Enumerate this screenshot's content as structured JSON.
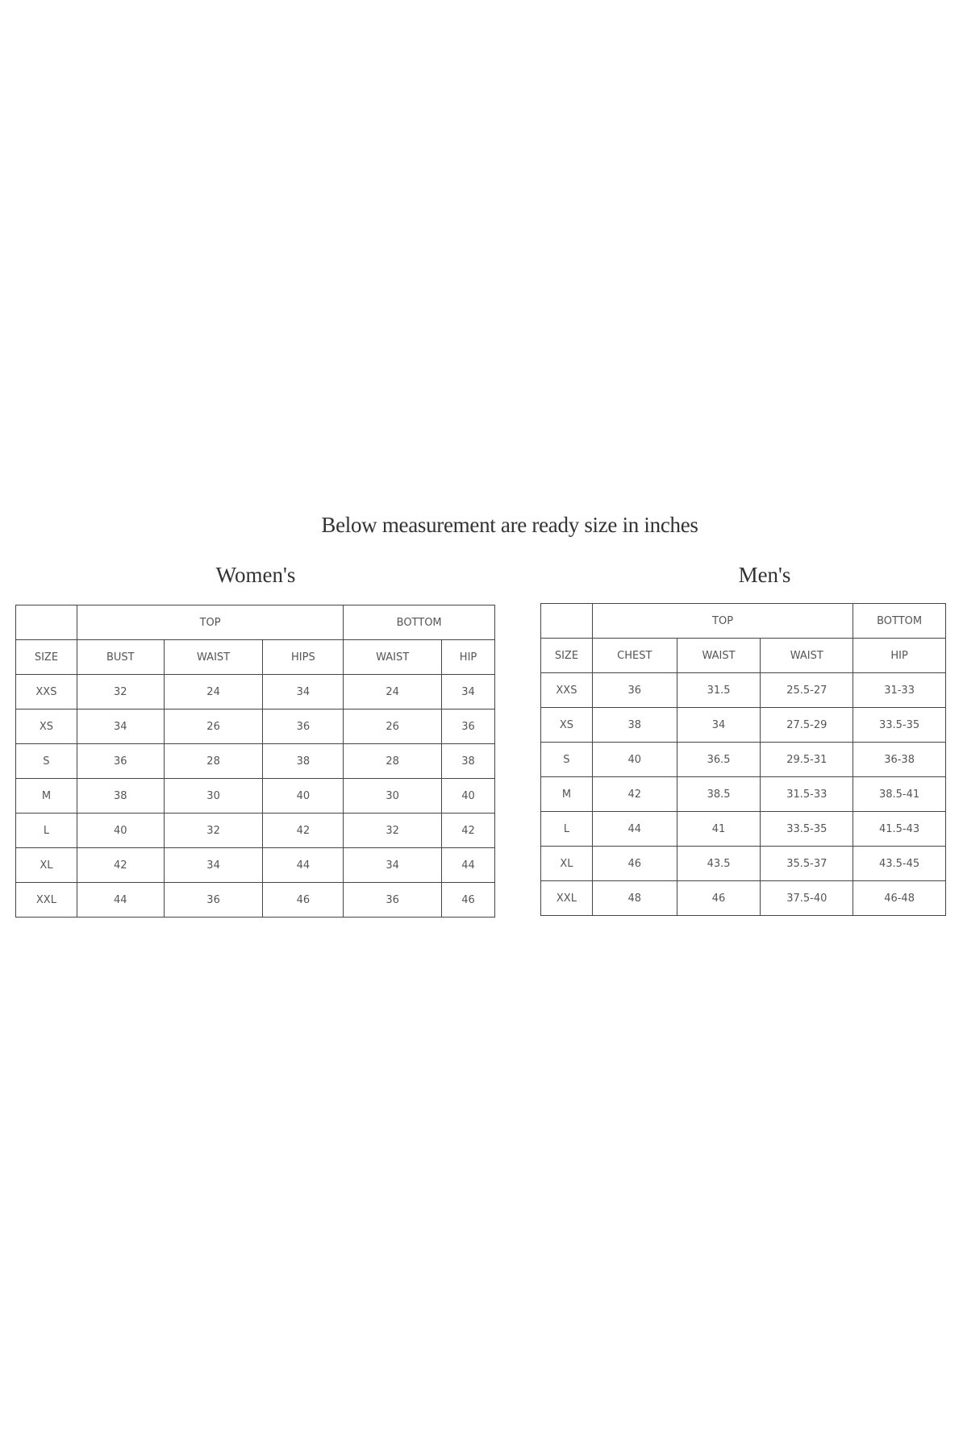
{
  "title": "Below measurement are ready size in inches",
  "women": {
    "heading": "Women's",
    "groups": [
      "TOP",
      "BOTTOM"
    ],
    "columns": [
      "SIZE",
      "BUST",
      "WAIST",
      "HIPS",
      "WAIST",
      "HIP"
    ],
    "rows": [
      [
        "XXS",
        "32",
        "24",
        "34",
        "24",
        "34"
      ],
      [
        "XS",
        "34",
        "26",
        "36",
        "26",
        "36"
      ],
      [
        "S",
        "36",
        "28",
        "38",
        "28",
        "38"
      ],
      [
        "M",
        "38",
        "30",
        "40",
        "30",
        "40"
      ],
      [
        "L",
        "40",
        "32",
        "42",
        "32",
        "42"
      ],
      [
        "XL",
        "42",
        "34",
        "44",
        "34",
        "44"
      ],
      [
        "XXL",
        "44",
        "36",
        "46",
        "36",
        "46"
      ]
    ]
  },
  "men": {
    "heading": "Men's",
    "groups": [
      "TOP",
      "BOTTOM"
    ],
    "columns": [
      "SIZE",
      "CHEST",
      "WAIST",
      "WAIST",
      "HIP"
    ],
    "rows": [
      [
        "XXS",
        "36",
        "31.5",
        "25.5-27",
        "31-33"
      ],
      [
        "XS",
        "38",
        "34",
        "27.5-29",
        "33.5-35"
      ],
      [
        "S",
        "40",
        "36.5",
        "29.5-31",
        "36-38"
      ],
      [
        "M",
        "42",
        "38.5",
        "31.5-33",
        "38.5-41"
      ],
      [
        "L",
        "44",
        "41",
        "33.5-35",
        "41.5-43"
      ],
      [
        "XL",
        "46",
        "43.5",
        "35.5-37",
        "43.5-45"
      ],
      [
        "XXL",
        "48",
        "46",
        "37.5-40",
        "46-48"
      ]
    ]
  }
}
